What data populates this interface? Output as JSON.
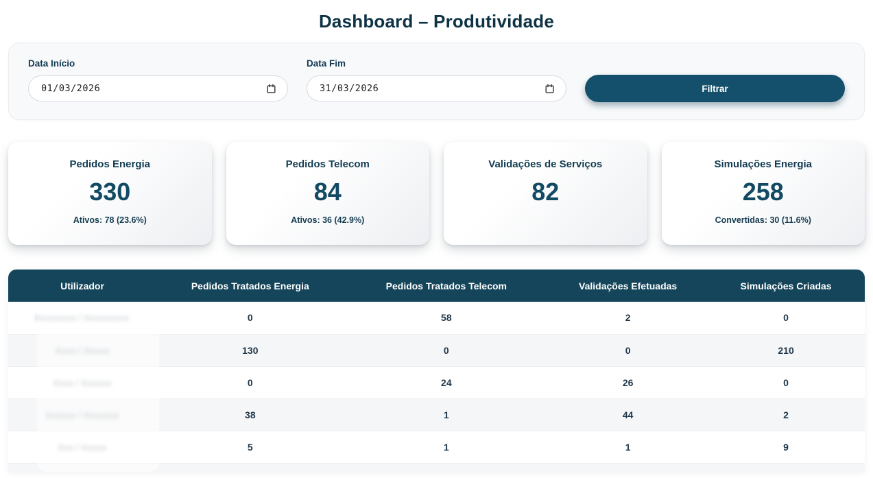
{
  "page": {
    "title": "Dashboard – Produtividade"
  },
  "colors": {
    "accent_header": "#15455a",
    "accent_button": "#14506b",
    "ink": "#0e3345"
  },
  "filters": {
    "start_label": "Data Início",
    "start_value": "01/03/2026",
    "end_label": "Data Fim",
    "end_value": "31/03/2026",
    "button_label": "Filtrar"
  },
  "cards": [
    {
      "title": "Pedidos Energia",
      "value": "330",
      "subtitle": "Ativos: 78 (23.6%)"
    },
    {
      "title": "Pedidos Telecom",
      "value": "84",
      "subtitle": "Ativos: 36 (42.9%)"
    },
    {
      "title": "Validações de Serviços",
      "value": "82",
      "subtitle": ""
    },
    {
      "title": "Simulações Energia",
      "value": "258",
      "subtitle": "Convertidas: 30 (11.6%)"
    }
  ],
  "table": {
    "columns": [
      "Utilizador",
      "Pedidos Tratados Energia",
      "Pedidos Tratados Telecom",
      "Validações Efetuadas",
      "Simulações Criadas"
    ],
    "users_redacted": true,
    "rows": [
      {
        "user": "Xxxxxxxx / Xxxxxxxxx",
        "energia": "0",
        "telecom": "58",
        "validacoes": "2",
        "simulacoes": "0"
      },
      {
        "user": "Xxxx / Xxxxx",
        "energia": "130",
        "telecom": "0",
        "validacoes": "0",
        "simulacoes": "210"
      },
      {
        "user": "Xxxx / Xxxxxx",
        "energia": "0",
        "telecom": "24",
        "validacoes": "26",
        "simulacoes": "0"
      },
      {
        "user": "Xxxxxx / Xxxxxxx",
        "energia": "38",
        "telecom": "1",
        "validacoes": "44",
        "simulacoes": "2"
      },
      {
        "user": "Xxx / Xxxxx",
        "energia": "5",
        "telecom": "1",
        "validacoes": "1",
        "simulacoes": "9"
      }
    ]
  }
}
